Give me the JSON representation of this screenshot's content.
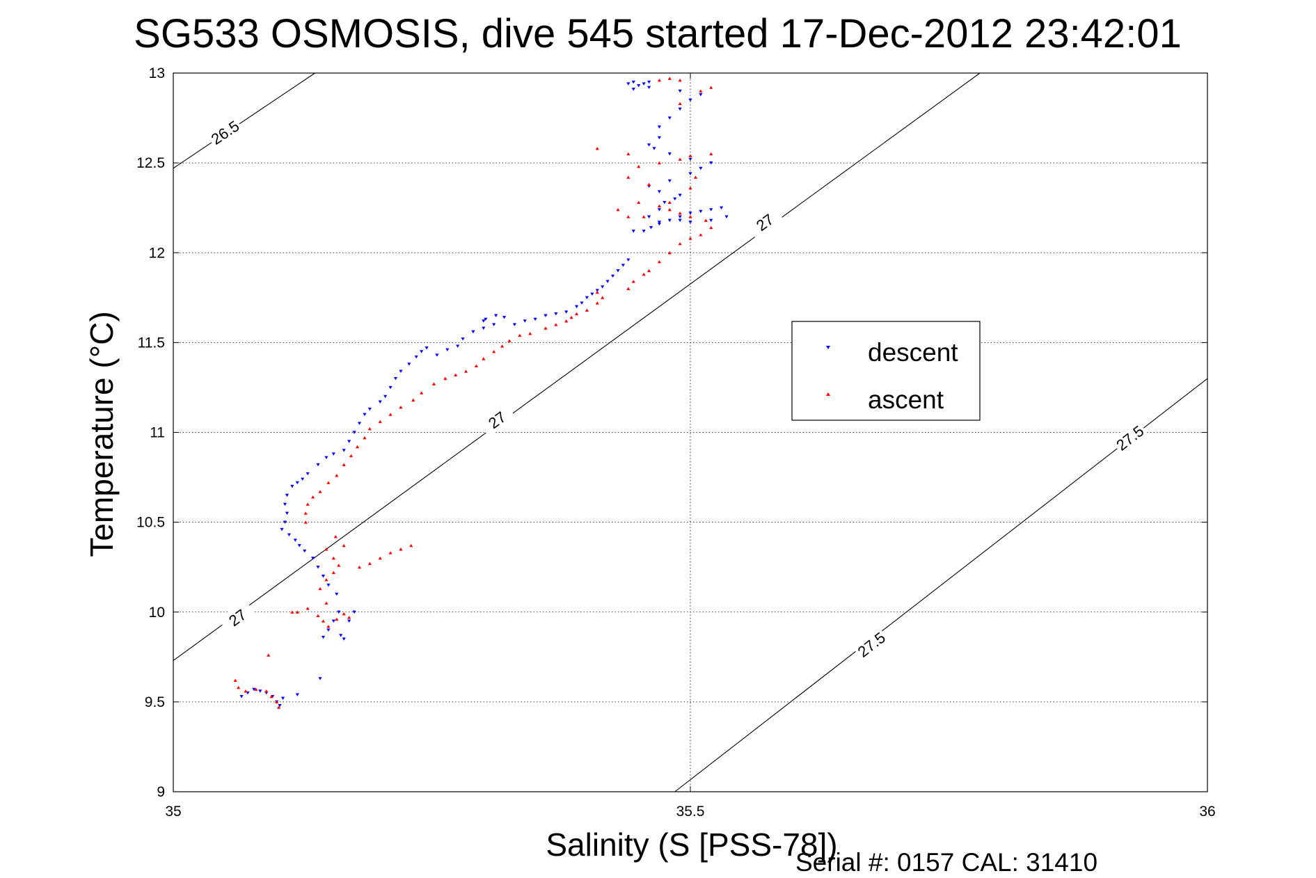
{
  "chart_data": {
    "type": "scatter",
    "title": "SG533 OSMOSIS, dive 545 started 17-Dec-2012 23:42:01",
    "xlabel": "Salinity (S [PSS-78])",
    "ylabel": "Temperature (°C)",
    "xlim": [
      35,
      36
    ],
    "ylim": [
      9,
      13
    ],
    "xticks": [
      "35",
      "35.5",
      "36"
    ],
    "yticks": [
      "9",
      "9.5",
      "10",
      "10.5",
      "11",
      "11.5",
      "12",
      "12.5",
      "13"
    ],
    "grid": "on (dotted)",
    "legend_position": "upper-right-center",
    "footer": "Serial #: 0157  CAL: 31410",
    "colors": {
      "descent": "#0000ff",
      "ascent": "#ff0000",
      "contour": "#000000"
    },
    "contours": [
      {
        "label": "26.5",
        "points": [
          [
            35.0,
            12.47
          ],
          [
            35.137,
            13.0
          ]
        ],
        "labels": [
          {
            "text": "26.5",
            "x": 35.05,
            "y": 12.67
          }
        ]
      },
      {
        "label": "27",
        "points": [
          [
            35.0,
            9.73
          ],
          [
            35.78,
            13.0
          ]
        ],
        "labels": [
          {
            "text": "27",
            "x": 35.062,
            "y": 9.97
          },
          {
            "text": "27",
            "x": 35.313,
            "y": 11.07
          },
          {
            "text": "27",
            "x": 35.572,
            "y": 12.17
          }
        ]
      },
      {
        "label": "27.5",
        "points": [
          [
            35.485,
            9.0
          ],
          [
            36.0,
            11.3
          ]
        ],
        "labels": [
          {
            "text": "27.5",
            "x": 35.675,
            "y": 9.82
          },
          {
            "text": "27.5",
            "x": 35.925,
            "y": 10.97
          }
        ]
      }
    ],
    "series": [
      {
        "name": "descent",
        "marker": "triangle-down",
        "points": [
          [
            35.066,
            9.53
          ],
          [
            35.072,
            9.55
          ],
          [
            35.078,
            9.57
          ],
          [
            35.084,
            9.56
          ],
          [
            35.09,
            9.55
          ],
          [
            35.096,
            9.53
          ],
          [
            35.1,
            9.5
          ],
          [
            35.103,
            9.48
          ],
          [
            35.106,
            9.52
          ],
          [
            35.12,
            9.54
          ],
          [
            35.142,
            9.63
          ],
          [
            35.145,
            9.86
          ],
          [
            35.15,
            9.9
          ],
          [
            35.155,
            9.95
          ],
          [
            35.16,
            10.0
          ],
          [
            35.162,
            9.87
          ],
          [
            35.165,
            9.85
          ],
          [
            35.17,
            9.95
          ],
          [
            35.175,
            10.0
          ],
          [
            35.158,
            10.1
          ],
          [
            35.15,
            10.15
          ],
          [
            35.145,
            10.2
          ],
          [
            35.14,
            10.25
          ],
          [
            35.135,
            10.3
          ],
          [
            35.127,
            10.34
          ],
          [
            35.122,
            10.37
          ],
          [
            35.118,
            10.4
          ],
          [
            35.112,
            10.43
          ],
          [
            35.105,
            10.46
          ],
          [
            35.108,
            10.5
          ],
          [
            35.11,
            10.55
          ],
          [
            35.108,
            10.6
          ],
          [
            35.11,
            10.65
          ],
          [
            35.115,
            10.7
          ],
          [
            35.12,
            10.72
          ],
          [
            35.125,
            10.74
          ],
          [
            35.13,
            10.77
          ],
          [
            35.14,
            10.82
          ],
          [
            35.148,
            10.86
          ],
          [
            35.155,
            10.88
          ],
          [
            35.165,
            10.9
          ],
          [
            35.17,
            10.95
          ],
          [
            35.175,
            11.0
          ],
          [
            35.18,
            11.05
          ],
          [
            35.185,
            11.1
          ],
          [
            35.19,
            11.13
          ],
          [
            35.2,
            11.17
          ],
          [
            35.205,
            11.2
          ],
          [
            35.21,
            11.25
          ],
          [
            35.215,
            11.3
          ],
          [
            35.22,
            11.34
          ],
          [
            35.228,
            11.38
          ],
          [
            35.235,
            11.42
          ],
          [
            35.24,
            11.45
          ],
          [
            35.245,
            11.47
          ],
          [
            35.255,
            11.43
          ],
          [
            35.265,
            11.46
          ],
          [
            35.275,
            11.48
          ],
          [
            35.28,
            11.52
          ],
          [
            35.29,
            11.56
          ],
          [
            35.3,
            11.58
          ],
          [
            35.31,
            11.6
          ],
          [
            35.3,
            11.62
          ],
          [
            35.302,
            11.63
          ],
          [
            35.312,
            11.65
          ],
          [
            35.32,
            11.64
          ],
          [
            35.33,
            11.6
          ],
          [
            35.34,
            11.62
          ],
          [
            35.35,
            11.63
          ],
          [
            35.36,
            11.65
          ],
          [
            35.37,
            11.66
          ],
          [
            35.38,
            11.67
          ],
          [
            35.39,
            11.7
          ],
          [
            35.395,
            11.72
          ],
          [
            35.4,
            11.75
          ],
          [
            35.405,
            11.77
          ],
          [
            35.41,
            11.79
          ],
          [
            35.415,
            11.81
          ],
          [
            35.42,
            11.84
          ],
          [
            35.425,
            11.87
          ],
          [
            35.43,
            11.9
          ],
          [
            35.435,
            11.93
          ],
          [
            35.44,
            11.96
          ],
          [
            35.445,
            12.12
          ],
          [
            35.455,
            12.12
          ],
          [
            35.462,
            12.14
          ],
          [
            35.47,
            12.16
          ],
          [
            35.48,
            12.18
          ],
          [
            35.49,
            12.2
          ],
          [
            35.5,
            12.22
          ],
          [
            35.51,
            12.23
          ],
          [
            35.52,
            12.24
          ],
          [
            35.53,
            12.25
          ],
          [
            35.535,
            12.2
          ],
          [
            35.52,
            12.18
          ],
          [
            35.5,
            12.17
          ],
          [
            35.49,
            12.18
          ],
          [
            35.47,
            12.17
          ],
          [
            35.46,
            12.2
          ],
          [
            35.47,
            12.24
          ],
          [
            35.475,
            12.28
          ],
          [
            35.485,
            12.3
          ],
          [
            35.49,
            12.32
          ],
          [
            35.47,
            12.34
          ],
          [
            35.46,
            12.37
          ],
          [
            35.48,
            12.4
          ],
          [
            35.5,
            12.44
          ],
          [
            35.51,
            12.47
          ],
          [
            35.52,
            12.5
          ],
          [
            35.5,
            12.52
          ],
          [
            35.48,
            12.55
          ],
          [
            35.465,
            12.58
          ],
          [
            35.46,
            12.6
          ],
          [
            35.47,
            12.64
          ],
          [
            35.47,
            12.7
          ],
          [
            35.48,
            12.75
          ],
          [
            35.49,
            12.8
          ],
          [
            35.5,
            12.85
          ],
          [
            35.51,
            12.88
          ],
          [
            35.49,
            12.9
          ],
          [
            35.46,
            12.92
          ],
          [
            35.45,
            12.93
          ],
          [
            35.44,
            12.94
          ],
          [
            35.445,
            12.95
          ],
          [
            35.455,
            12.94
          ],
          [
            35.46,
            12.95
          ],
          [
            35.445,
            12.91
          ]
        ]
      },
      {
        "name": "ascent",
        "marker": "triangle-up",
        "points": [
          [
            35.06,
            9.62
          ],
          [
            35.063,
            9.58
          ],
          [
            35.07,
            9.56
          ],
          [
            35.08,
            9.57
          ],
          [
            35.09,
            9.56
          ],
          [
            35.095,
            9.53
          ],
          [
            35.1,
            9.5
          ],
          [
            35.102,
            9.47
          ],
          [
            35.092,
            9.76
          ],
          [
            35.115,
            10.0
          ],
          [
            35.12,
            10.0
          ],
          [
            35.13,
            10.02
          ],
          [
            35.14,
            9.98
          ],
          [
            35.145,
            9.95
          ],
          [
            35.15,
            9.92
          ],
          [
            35.158,
            9.96
          ],
          [
            35.165,
            9.99
          ],
          [
            35.17,
            9.97
          ],
          [
            35.148,
            10.05
          ],
          [
            35.142,
            10.13
          ],
          [
            35.148,
            10.18
          ],
          [
            35.155,
            10.22
          ],
          [
            35.16,
            10.26
          ],
          [
            35.155,
            10.3
          ],
          [
            35.148,
            10.35
          ],
          [
            35.157,
            10.42
          ],
          [
            35.165,
            10.37
          ],
          [
            35.18,
            10.25
          ],
          [
            35.19,
            10.27
          ],
          [
            35.2,
            10.3
          ],
          [
            35.21,
            10.33
          ],
          [
            35.22,
            10.35
          ],
          [
            35.23,
            10.37
          ],
          [
            35.128,
            10.5
          ],
          [
            35.128,
            10.55
          ],
          [
            35.13,
            10.6
          ],
          [
            35.135,
            10.64
          ],
          [
            35.142,
            10.67
          ],
          [
            35.15,
            10.72
          ],
          [
            35.158,
            10.76
          ],
          [
            35.165,
            10.82
          ],
          [
            35.172,
            10.87
          ],
          [
            35.178,
            10.92
          ],
          [
            35.185,
            10.97
          ],
          [
            35.19,
            11.02
          ],
          [
            35.2,
            11.06
          ],
          [
            35.21,
            11.1
          ],
          [
            35.22,
            11.14
          ],
          [
            35.232,
            11.18
          ],
          [
            35.24,
            11.22
          ],
          [
            35.252,
            11.27
          ],
          [
            35.263,
            11.3
          ],
          [
            35.273,
            11.32
          ],
          [
            35.283,
            11.34
          ],
          [
            35.293,
            11.37
          ],
          [
            35.3,
            11.41
          ],
          [
            35.31,
            11.45
          ],
          [
            35.318,
            11.48
          ],
          [
            35.325,
            11.51
          ],
          [
            35.335,
            11.54
          ],
          [
            35.345,
            11.55
          ],
          [
            35.36,
            11.58
          ],
          [
            35.37,
            11.6
          ],
          [
            35.38,
            11.62
          ],
          [
            35.385,
            11.64
          ],
          [
            35.39,
            11.66
          ],
          [
            35.4,
            11.68
          ],
          [
            35.41,
            11.72
          ],
          [
            35.415,
            11.75
          ],
          [
            35.41,
            11.78
          ],
          [
            35.44,
            11.8
          ],
          [
            35.445,
            11.84
          ],
          [
            35.455,
            11.88
          ],
          [
            35.46,
            11.9
          ],
          [
            35.47,
            11.95
          ],
          [
            35.48,
            12.0
          ],
          [
            35.49,
            12.05
          ],
          [
            35.5,
            12.08
          ],
          [
            35.51,
            12.1
          ],
          [
            35.52,
            12.14
          ],
          [
            35.515,
            12.18
          ],
          [
            35.5,
            12.2
          ],
          [
            35.49,
            12.22
          ],
          [
            35.48,
            12.24
          ],
          [
            35.47,
            12.26
          ],
          [
            35.455,
            12.2
          ],
          [
            35.44,
            12.2
          ],
          [
            35.45,
            12.28
          ],
          [
            35.46,
            12.38
          ],
          [
            35.44,
            12.42
          ],
          [
            35.45,
            12.48
          ],
          [
            35.44,
            12.55
          ],
          [
            35.47,
            12.5
          ],
          [
            35.49,
            12.52
          ],
          [
            35.5,
            12.54
          ],
          [
            35.52,
            12.55
          ],
          [
            35.505,
            12.42
          ],
          [
            35.5,
            12.36
          ],
          [
            35.48,
            12.28
          ],
          [
            35.43,
            12.24
          ],
          [
            35.41,
            12.58
          ],
          [
            35.49,
            12.83
          ],
          [
            35.51,
            12.9
          ],
          [
            35.52,
            12.92
          ],
          [
            35.47,
            12.96
          ],
          [
            35.48,
            12.97
          ],
          [
            35.49,
            12.96
          ]
        ]
      }
    ]
  }
}
